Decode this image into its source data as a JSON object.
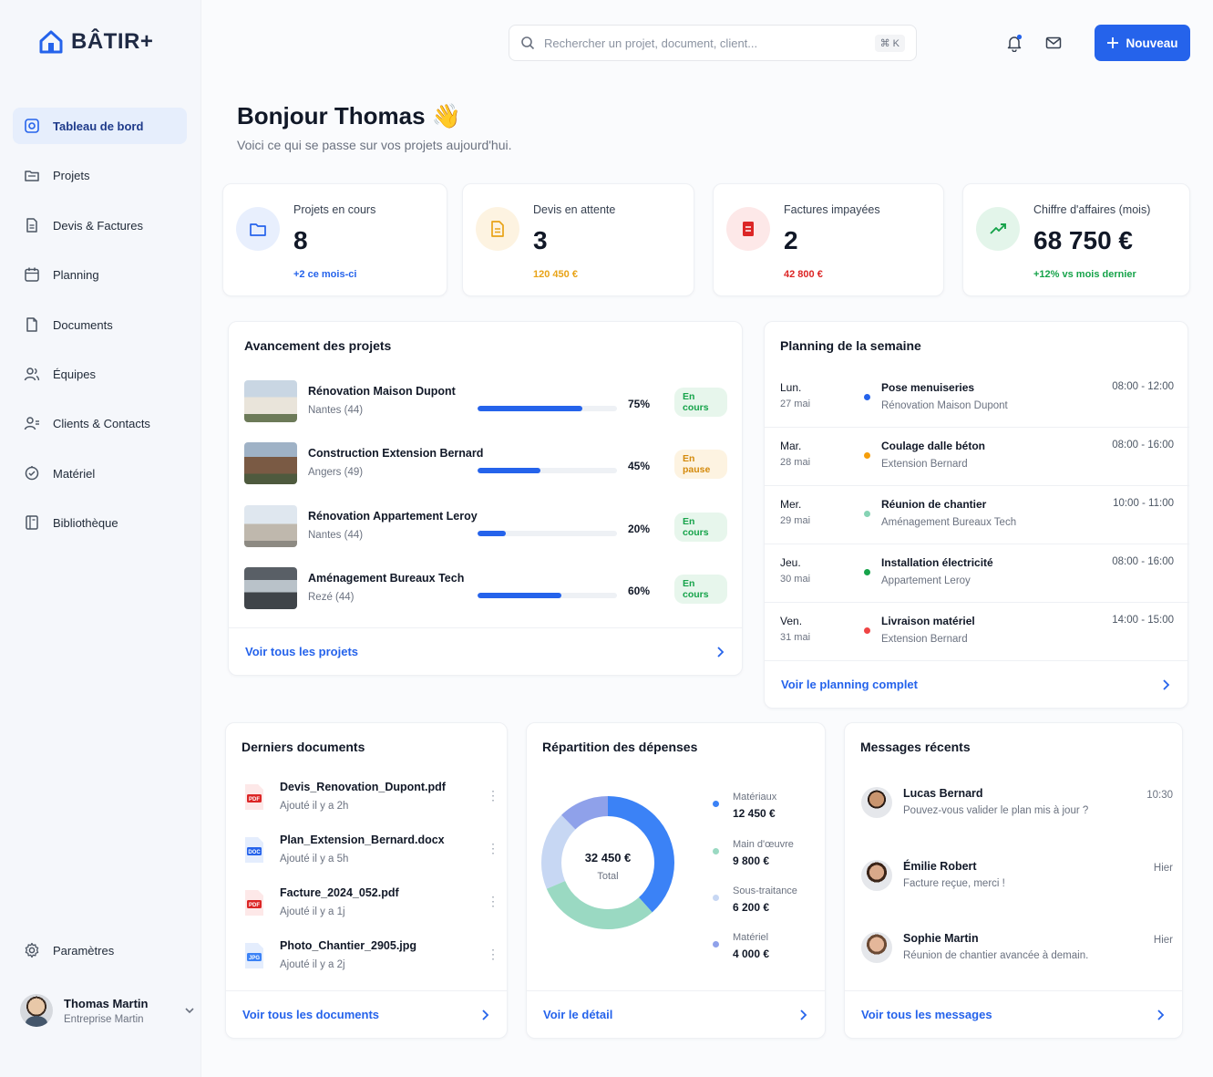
{
  "app": {
    "name": "BÂTIR+"
  },
  "sidebar": {
    "items": [
      {
        "label": "Tableau de bord",
        "icon": "dashboard-icon",
        "active": true
      },
      {
        "label": "Projets",
        "icon": "folder-icon"
      },
      {
        "label": "Devis & Factures",
        "icon": "invoice-icon"
      },
      {
        "label": "Planning",
        "icon": "calendar-icon"
      },
      {
        "label": "Documents",
        "icon": "document-icon"
      },
      {
        "label": "Équipes",
        "icon": "team-icon"
      },
      {
        "label": "Clients & Contacts",
        "icon": "contacts-icon"
      },
      {
        "label": "Matériel",
        "icon": "tools-icon"
      },
      {
        "label": "Bibliothèque",
        "icon": "library-icon"
      }
    ],
    "settings_label": "Paramètres",
    "user": {
      "name": "Thomas Martin",
      "company": "Entreprise Martin"
    }
  },
  "header": {
    "search_placeholder": "Rechercher un projet, document, client...",
    "search_shortcut": "⌘ K",
    "new_button": "Nouveau"
  },
  "greeting": {
    "title": "Bonjour Thomas 👋",
    "subtitle": "Voici ce qui se passe sur vos projets aujourd'hui."
  },
  "kpis": [
    {
      "label": "Projets en cours",
      "value": "8",
      "delta": "+2 ce mois-ci",
      "color": "#2563eb"
    },
    {
      "label": "Devis en attente",
      "value": "3",
      "delta": "120 450 €",
      "color": "#e8a317"
    },
    {
      "label": "Factures impayées",
      "value": "2",
      "delta": "42 800 €",
      "color": "#dc2626"
    },
    {
      "label": "Chiffre d'affaires (mois)",
      "value": "68 750 €",
      "delta": "+12% vs mois dernier",
      "color": "#16a34a"
    }
  ],
  "projects": {
    "title": "Avancement des projets",
    "items": [
      {
        "name": "Rénovation Maison Dupont",
        "location": "Nantes (44)",
        "progress": 75,
        "progress_label": "75%",
        "status": "En cours"
      },
      {
        "name": "Construction Extension Bernard",
        "location": "Angers (49)",
        "progress": 45,
        "progress_label": "45%",
        "status": "En pause"
      },
      {
        "name": "Rénovation Appartement Leroy",
        "location": "Nantes (44)",
        "progress": 20,
        "progress_label": "20%",
        "status": "En cours"
      },
      {
        "name": "Aménagement Bureaux Tech",
        "location": "Rezé (44)",
        "progress": 60,
        "progress_label": "60%",
        "status": "En cours"
      }
    ],
    "footer": "Voir tous les projets"
  },
  "planning": {
    "title": "Planning de la semaine",
    "items": [
      {
        "day": "Lun.",
        "date": "27 mai",
        "title": "Pose menuiseries",
        "project": "Rénovation Maison Dupont",
        "time": "08:00 - 12:00",
        "color": "#2563eb"
      },
      {
        "day": "Mar.",
        "date": "28 mai",
        "title": "Coulage dalle béton",
        "project": "Extension Bernard",
        "time": "08:00 - 16:00",
        "color": "#f59e0b"
      },
      {
        "day": "Mer.",
        "date": "29 mai",
        "title": "Réunion de chantier",
        "project": "Aménagement Bureaux Tech",
        "time": "10:00 - 11:00",
        "color": "#86d3b4"
      },
      {
        "day": "Jeu.",
        "date": "30 mai",
        "title": "Installation électricité",
        "project": "Appartement Leroy",
        "time": "08:00 - 16:00",
        "color": "#16a34a"
      },
      {
        "day": "Ven.",
        "date": "31 mai",
        "title": "Livraison matériel",
        "project": "Extension Bernard",
        "time": "14:00 - 15:00",
        "color": "#ef4444"
      }
    ],
    "footer": "Voir le planning complet"
  },
  "documents": {
    "title": "Derniers documents",
    "items": [
      {
        "name": "Devis_Renovation_Dupont.pdf",
        "added": "Ajouté il y a 2h",
        "type": "PDF",
        "color": "#dc2626"
      },
      {
        "name": "Plan_Extension_Bernard.docx",
        "added": "Ajouté il y a 5h",
        "type": "DOC",
        "color": "#2563eb"
      },
      {
        "name": "Facture_2024_052.pdf",
        "added": "Ajouté il y a 1j",
        "type": "PDF",
        "color": "#dc2626"
      },
      {
        "name": "Photo_Chantier_2905.jpg",
        "added": "Ajouté il y a 2j",
        "type": "JPG",
        "color": "#3b82f6"
      }
    ],
    "footer": "Voir tous les documents"
  },
  "expenses": {
    "title": "Répartition des dépenses",
    "total": "32 450 €",
    "total_label": "Total",
    "footer": "Voir le détail"
  },
  "chart_data": {
    "type": "pie",
    "title": "Répartition des dépenses",
    "categories": [
      "Matériaux",
      "Main d'œuvre",
      "Sous-traitance",
      "Matériel"
    ],
    "values": [
      12450,
      9800,
      6200,
      4000
    ],
    "value_labels": [
      "12 450 €",
      "9 800 €",
      "6 200 €",
      "4 000 €"
    ],
    "colors": [
      "#3b82f6",
      "#9ad9c2",
      "#c7d7f3",
      "#8fa1ea"
    ]
  },
  "messages": {
    "title": "Messages récents",
    "items": [
      {
        "name": "Lucas Bernard",
        "text": "Pouvez-vous valider le plan mis à jour ?",
        "time": "10:30"
      },
      {
        "name": "Émilie Robert",
        "text": "Facture reçue, merci !",
        "time": "Hier"
      },
      {
        "name": "Sophie Martin",
        "text": "Réunion de chantier avancée à demain.",
        "time": "Hier"
      }
    ],
    "footer": "Voir tous les messages"
  }
}
